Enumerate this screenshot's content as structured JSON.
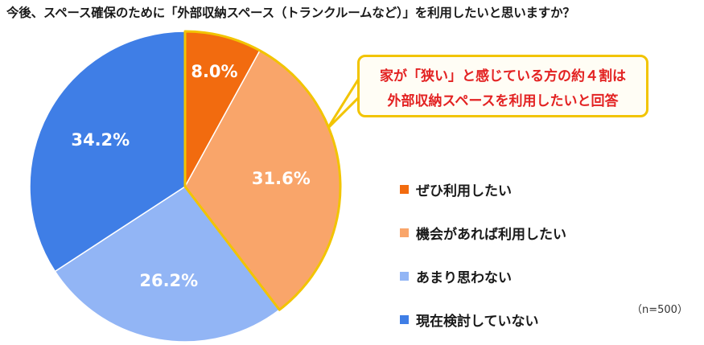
{
  "title": "今後、スペース確保のために「外部収納スペース（トランクルームなど）」を利用したいと思いますか？",
  "callout": {
    "line1": "家が「狭い」と感じている方の約４割は",
    "line2": "外部収納スペースを利用したいと回答"
  },
  "note": "（n=500）",
  "chart_data": {
    "type": "pie",
    "title": "今後、スペース確保のために「外部収納スペース（トランクルームなど）」を利用したいと思いますか？",
    "sample_size": "n=500",
    "highlight": [
      "ぜひ利用したい",
      "機会があれば利用したい"
    ],
    "highlight_color": "#f2c400",
    "legend_placement": "right",
    "slices": [
      {
        "label": "ぜひ利用したい",
        "value": 8.0,
        "display": "8.0%",
        "color": "#f26b0f"
      },
      {
        "label": "機会があれば利用したい",
        "value": 31.6,
        "display": "31.6%",
        "color": "#f9a56a"
      },
      {
        "label": "あまり思わない",
        "value": 26.2,
        "display": "26.2%",
        "color": "#92b5f5"
      },
      {
        "label": "現在検討していない",
        "value": 34.2,
        "display": "34.2%",
        "color": "#3f7ee6"
      }
    ]
  }
}
